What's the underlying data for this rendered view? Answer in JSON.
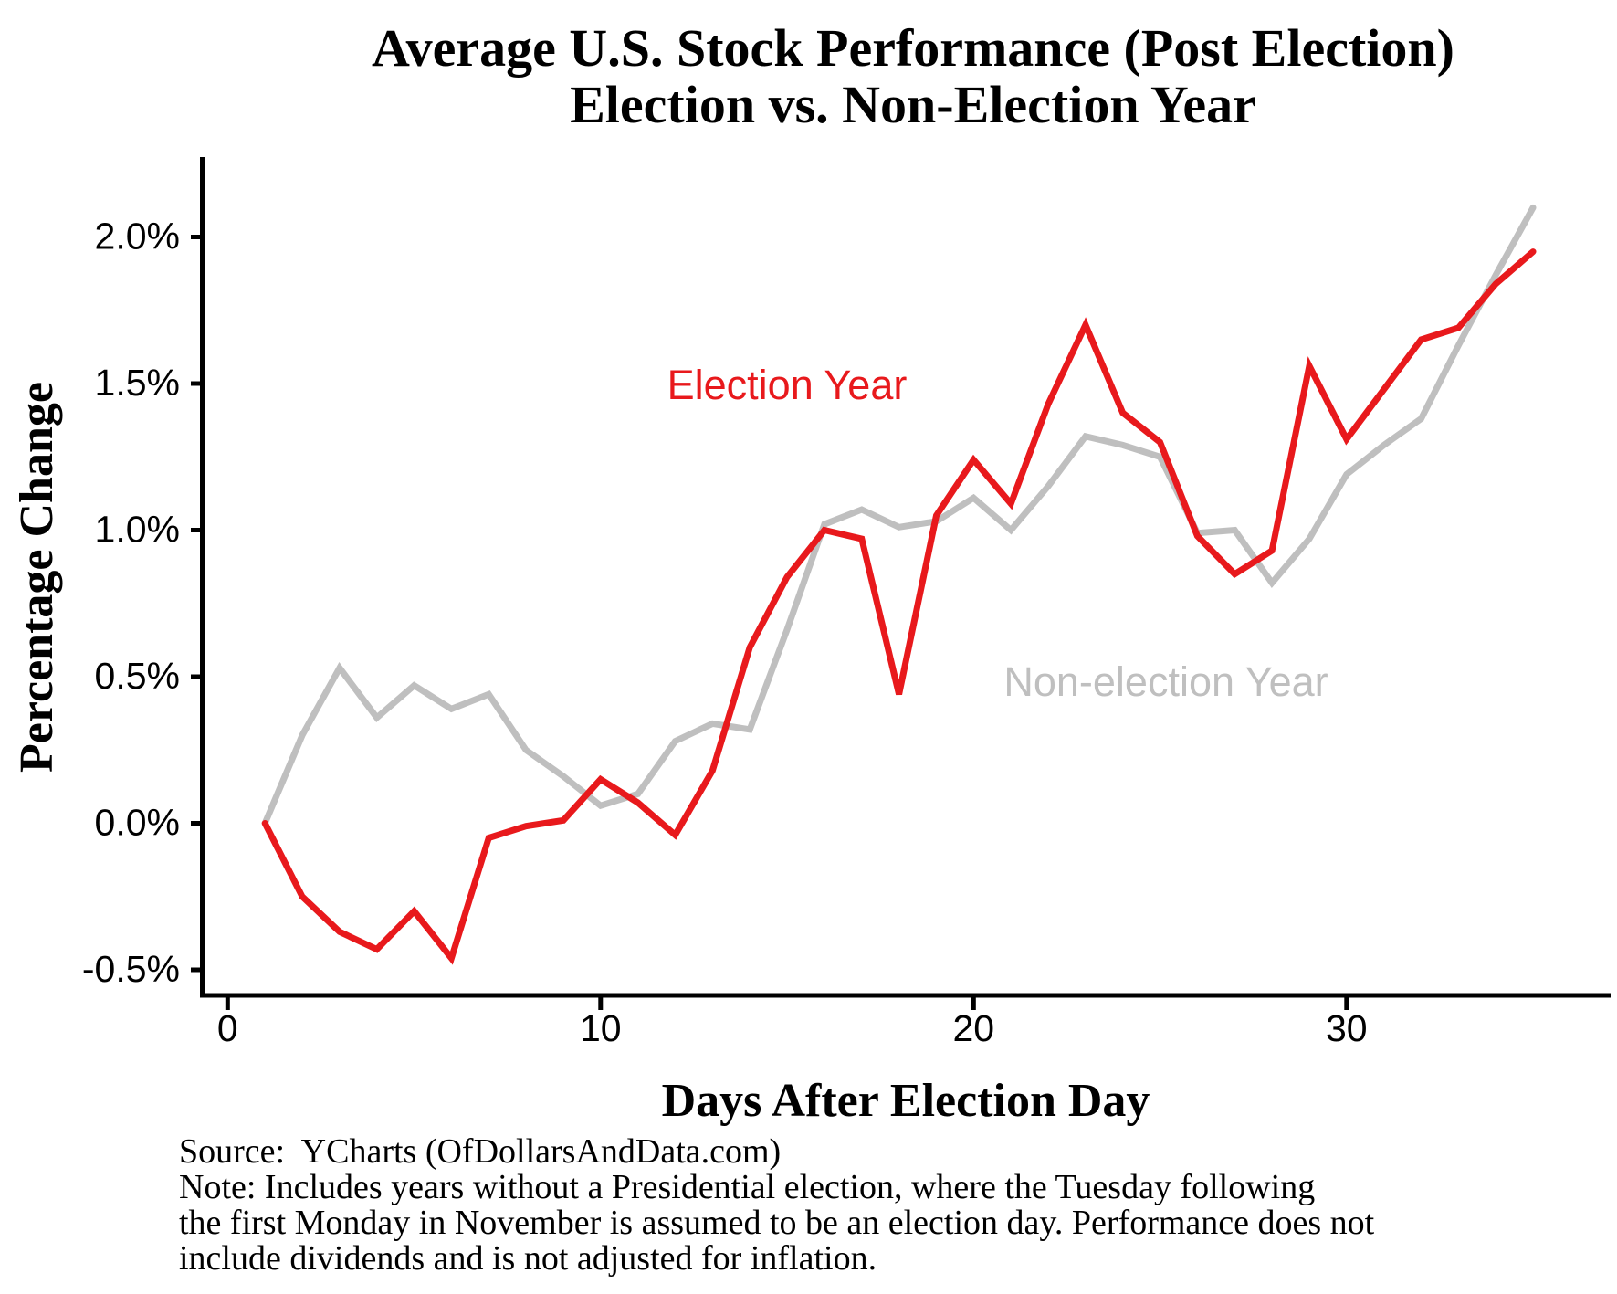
{
  "title": {
    "line1": "Average U.S. Stock Performance (Post Election)",
    "line2": "Election vs. Non-Election Year"
  },
  "axes": {
    "x": {
      "title": "Days After Election Day",
      "ticks": [
        {
          "value": 0,
          "label": "0"
        },
        {
          "value": 10,
          "label": "10"
        },
        {
          "value": 20,
          "label": "20"
        },
        {
          "value": 30,
          "label": "30"
        }
      ]
    },
    "y": {
      "title": "Percentage Change",
      "ticks": [
        {
          "value": 2.0,
          "label": "2.0%"
        },
        {
          "value": 1.5,
          "label": "1.5%"
        },
        {
          "value": 1.0,
          "label": "1.0%"
        },
        {
          "value": 0.5,
          "label": "0.5%"
        },
        {
          "value": 0.0,
          "label": "0.0%"
        },
        {
          "value": -0.5,
          "label": "-0.5%"
        }
      ]
    }
  },
  "annotations": {
    "election": {
      "label": "Election Year",
      "color": "#e8191c"
    },
    "non_election": {
      "label": "Non-election Year",
      "color": "#bfbfbf"
    }
  },
  "footer": {
    "lines": [
      "Source:  YCharts (OfDollarsAndData.com)",
      "Note: Includes years without a Presidential election, where the Tuesday following",
      "the first Monday in November is assumed to be an election day. Performance does not",
      "include dividends and is not adjusted for inflation."
    ]
  },
  "chart_data": {
    "type": "line",
    "title": "Average U.S. Stock Performance (Post Election) — Election vs. Non-Election Year",
    "xlabel": "Days After Election Day",
    "ylabel": "Percentage Change",
    "x": [
      1,
      2,
      3,
      4,
      5,
      6,
      7,
      8,
      9,
      10,
      11,
      12,
      13,
      14,
      15,
      16,
      17,
      18,
      19,
      20,
      21,
      22,
      23,
      24,
      25,
      26,
      27,
      28,
      29,
      30,
      31,
      32,
      33,
      34,
      35
    ],
    "series": [
      {
        "name": "Election Year",
        "color": "#e8191c",
        "values_percent": [
          0.0,
          -0.25,
          -0.37,
          -0.43,
          -0.3,
          -0.46,
          -0.05,
          -0.01,
          0.01,
          0.15,
          0.07,
          -0.04,
          0.18,
          0.6,
          0.84,
          1.0,
          0.97,
          0.44,
          1.05,
          1.24,
          1.09,
          1.43,
          1.7,
          1.4,
          1.3,
          0.98,
          0.85,
          0.93,
          1.56,
          1.31,
          1.48,
          1.65,
          1.69,
          1.84,
          1.95
        ]
      },
      {
        "name": "Non-election Year",
        "color": "#bfbfbf",
        "values_percent": [
          0.0,
          0.3,
          0.53,
          0.36,
          0.47,
          0.39,
          0.44,
          0.25,
          0.16,
          0.06,
          0.1,
          0.28,
          0.34,
          0.32,
          0.66,
          1.02,
          1.07,
          1.01,
          1.03,
          1.11,
          1.0,
          1.15,
          1.32,
          1.29,
          1.25,
          0.99,
          1.0,
          0.82,
          0.97,
          1.19,
          1.29,
          1.38,
          1.63,
          1.87,
          2.1
        ]
      }
    ],
    "x_ticks": [
      0,
      10,
      20,
      30
    ],
    "y_ticks_percent": [
      2.0,
      1.5,
      1.0,
      0.5,
      0.0,
      -0.5
    ],
    "xlim": [
      0,
      36.5
    ],
    "ylim_percent": [
      -0.6,
      2.27
    ],
    "grid": false,
    "legend": "inline-text-annotations"
  }
}
